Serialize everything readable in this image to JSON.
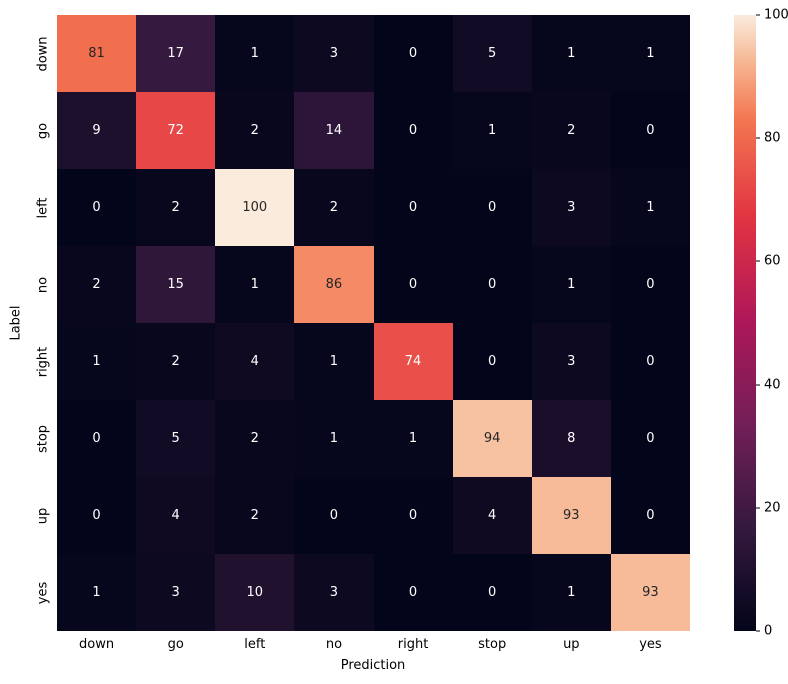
{
  "chart_data": {
    "type": "heatmap",
    "title": "",
    "xlabel": "Prediction",
    "ylabel": "Label",
    "categories": [
      "down",
      "go",
      "left",
      "no",
      "right",
      "stop",
      "up",
      "yes"
    ],
    "rows": [
      [
        81,
        17,
        1,
        3,
        0,
        5,
        1,
        1
      ],
      [
        9,
        72,
        2,
        14,
        0,
        1,
        2,
        0
      ],
      [
        0,
        2,
        100,
        2,
        0,
        0,
        3,
        1
      ],
      [
        2,
        15,
        1,
        86,
        0,
        0,
        1,
        0
      ],
      [
        1,
        2,
        4,
        1,
        74,
        0,
        3,
        0
      ],
      [
        0,
        5,
        2,
        1,
        1,
        94,
        8,
        0
      ],
      [
        0,
        4,
        2,
        0,
        0,
        4,
        93,
        0
      ],
      [
        1,
        3,
        10,
        3,
        0,
        0,
        1,
        93
      ]
    ],
    "vmin": 0,
    "vmax": 100,
    "colorbar_ticks": [
      0,
      20,
      40,
      60,
      80,
      100
    ],
    "colorbar_position": "right",
    "grid": false,
    "colormap": "rocket",
    "colormap_stops": [
      {
        "t": 0.0,
        "color": "#03051A"
      },
      {
        "t": 0.17,
        "color": "#35193E"
      },
      {
        "t": 0.33,
        "color": "#701F57"
      },
      {
        "t": 0.5,
        "color": "#AD1759"
      },
      {
        "t": 0.67,
        "color": "#E13342"
      },
      {
        "t": 0.83,
        "color": "#F37651"
      },
      {
        "t": 0.92,
        "color": "#F6B48F"
      },
      {
        "t": 1.0,
        "color": "#FAEBDD"
      }
    ],
    "annotation_text_dark": "#262626",
    "annotation_text_light": "#ffffff",
    "background": "#ffffff"
  }
}
